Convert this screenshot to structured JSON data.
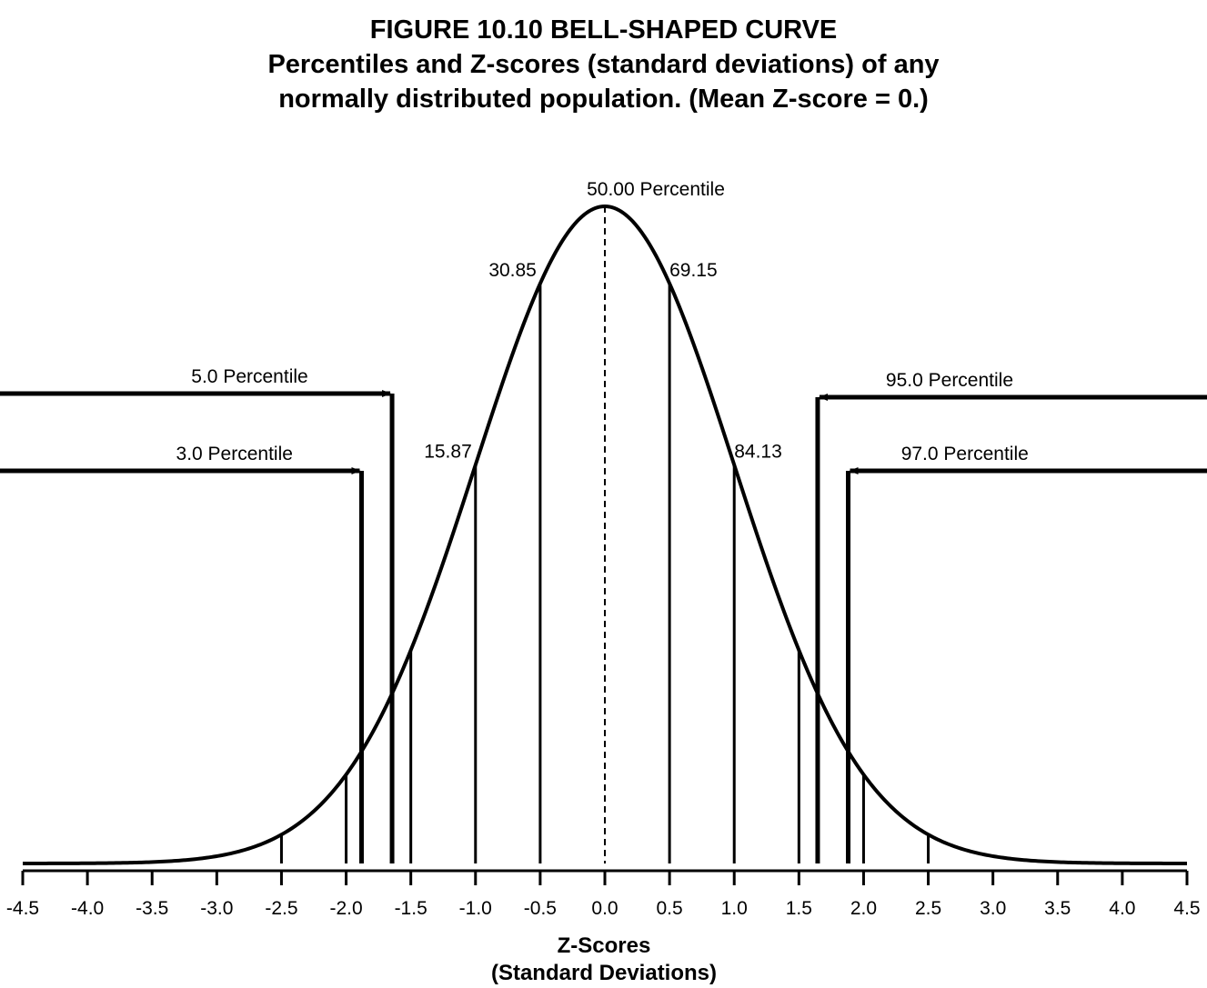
{
  "title": "FIGURE 10.10 BELL-SHAPED CURVE",
  "subtitle_line1": "Percentiles and Z-scores (standard deviations) of any",
  "subtitle_line2": "normally distributed population. (Mean Z-score = 0.)",
  "chart_data": {
    "type": "line",
    "curve": "standard normal density",
    "x_range": [
      -4.5,
      4.5
    ],
    "x_ticks": [
      "-4.5",
      "-4.0",
      "-3.5",
      "-3.0",
      "-2.5",
      "-2.0",
      "-1.5",
      "-1.0",
      "-0.5",
      "0.0",
      "0.5",
      "1.0",
      "1.5",
      "2.0",
      "2.5",
      "3.0",
      "3.5",
      "4.0",
      "4.5"
    ],
    "xlabel_line1": "Z-Scores",
    "xlabel_line2": "(Standard Deviations)",
    "mean_line": {
      "z": 0,
      "style": "dashed",
      "label": "50.00 Percentile"
    },
    "sd_lines": [
      {
        "z": -2.5
      },
      {
        "z": -2.0
      },
      {
        "z": -1.5
      },
      {
        "z": -1.0,
        "label": "15.87"
      },
      {
        "z": -0.5,
        "label": "30.85"
      },
      {
        "z": 0.5,
        "label": "69.15"
      },
      {
        "z": 1.0,
        "label": "84.13"
      },
      {
        "z": 1.5
      },
      {
        "z": 2.0
      },
      {
        "z": 2.5
      }
    ],
    "percentile_markers": [
      {
        "z": -1.645,
        "label": "5.0 Percentile",
        "arrow_from": "left"
      },
      {
        "z": -1.881,
        "label": "3.0 Percentile",
        "arrow_from": "left"
      },
      {
        "z": 1.645,
        "label": "95.0 Percentile",
        "arrow_from": "right"
      },
      {
        "z": 1.881,
        "label": "97.0 Percentile",
        "arrow_from": "right"
      }
    ],
    "grid": false,
    "legend": "none"
  }
}
